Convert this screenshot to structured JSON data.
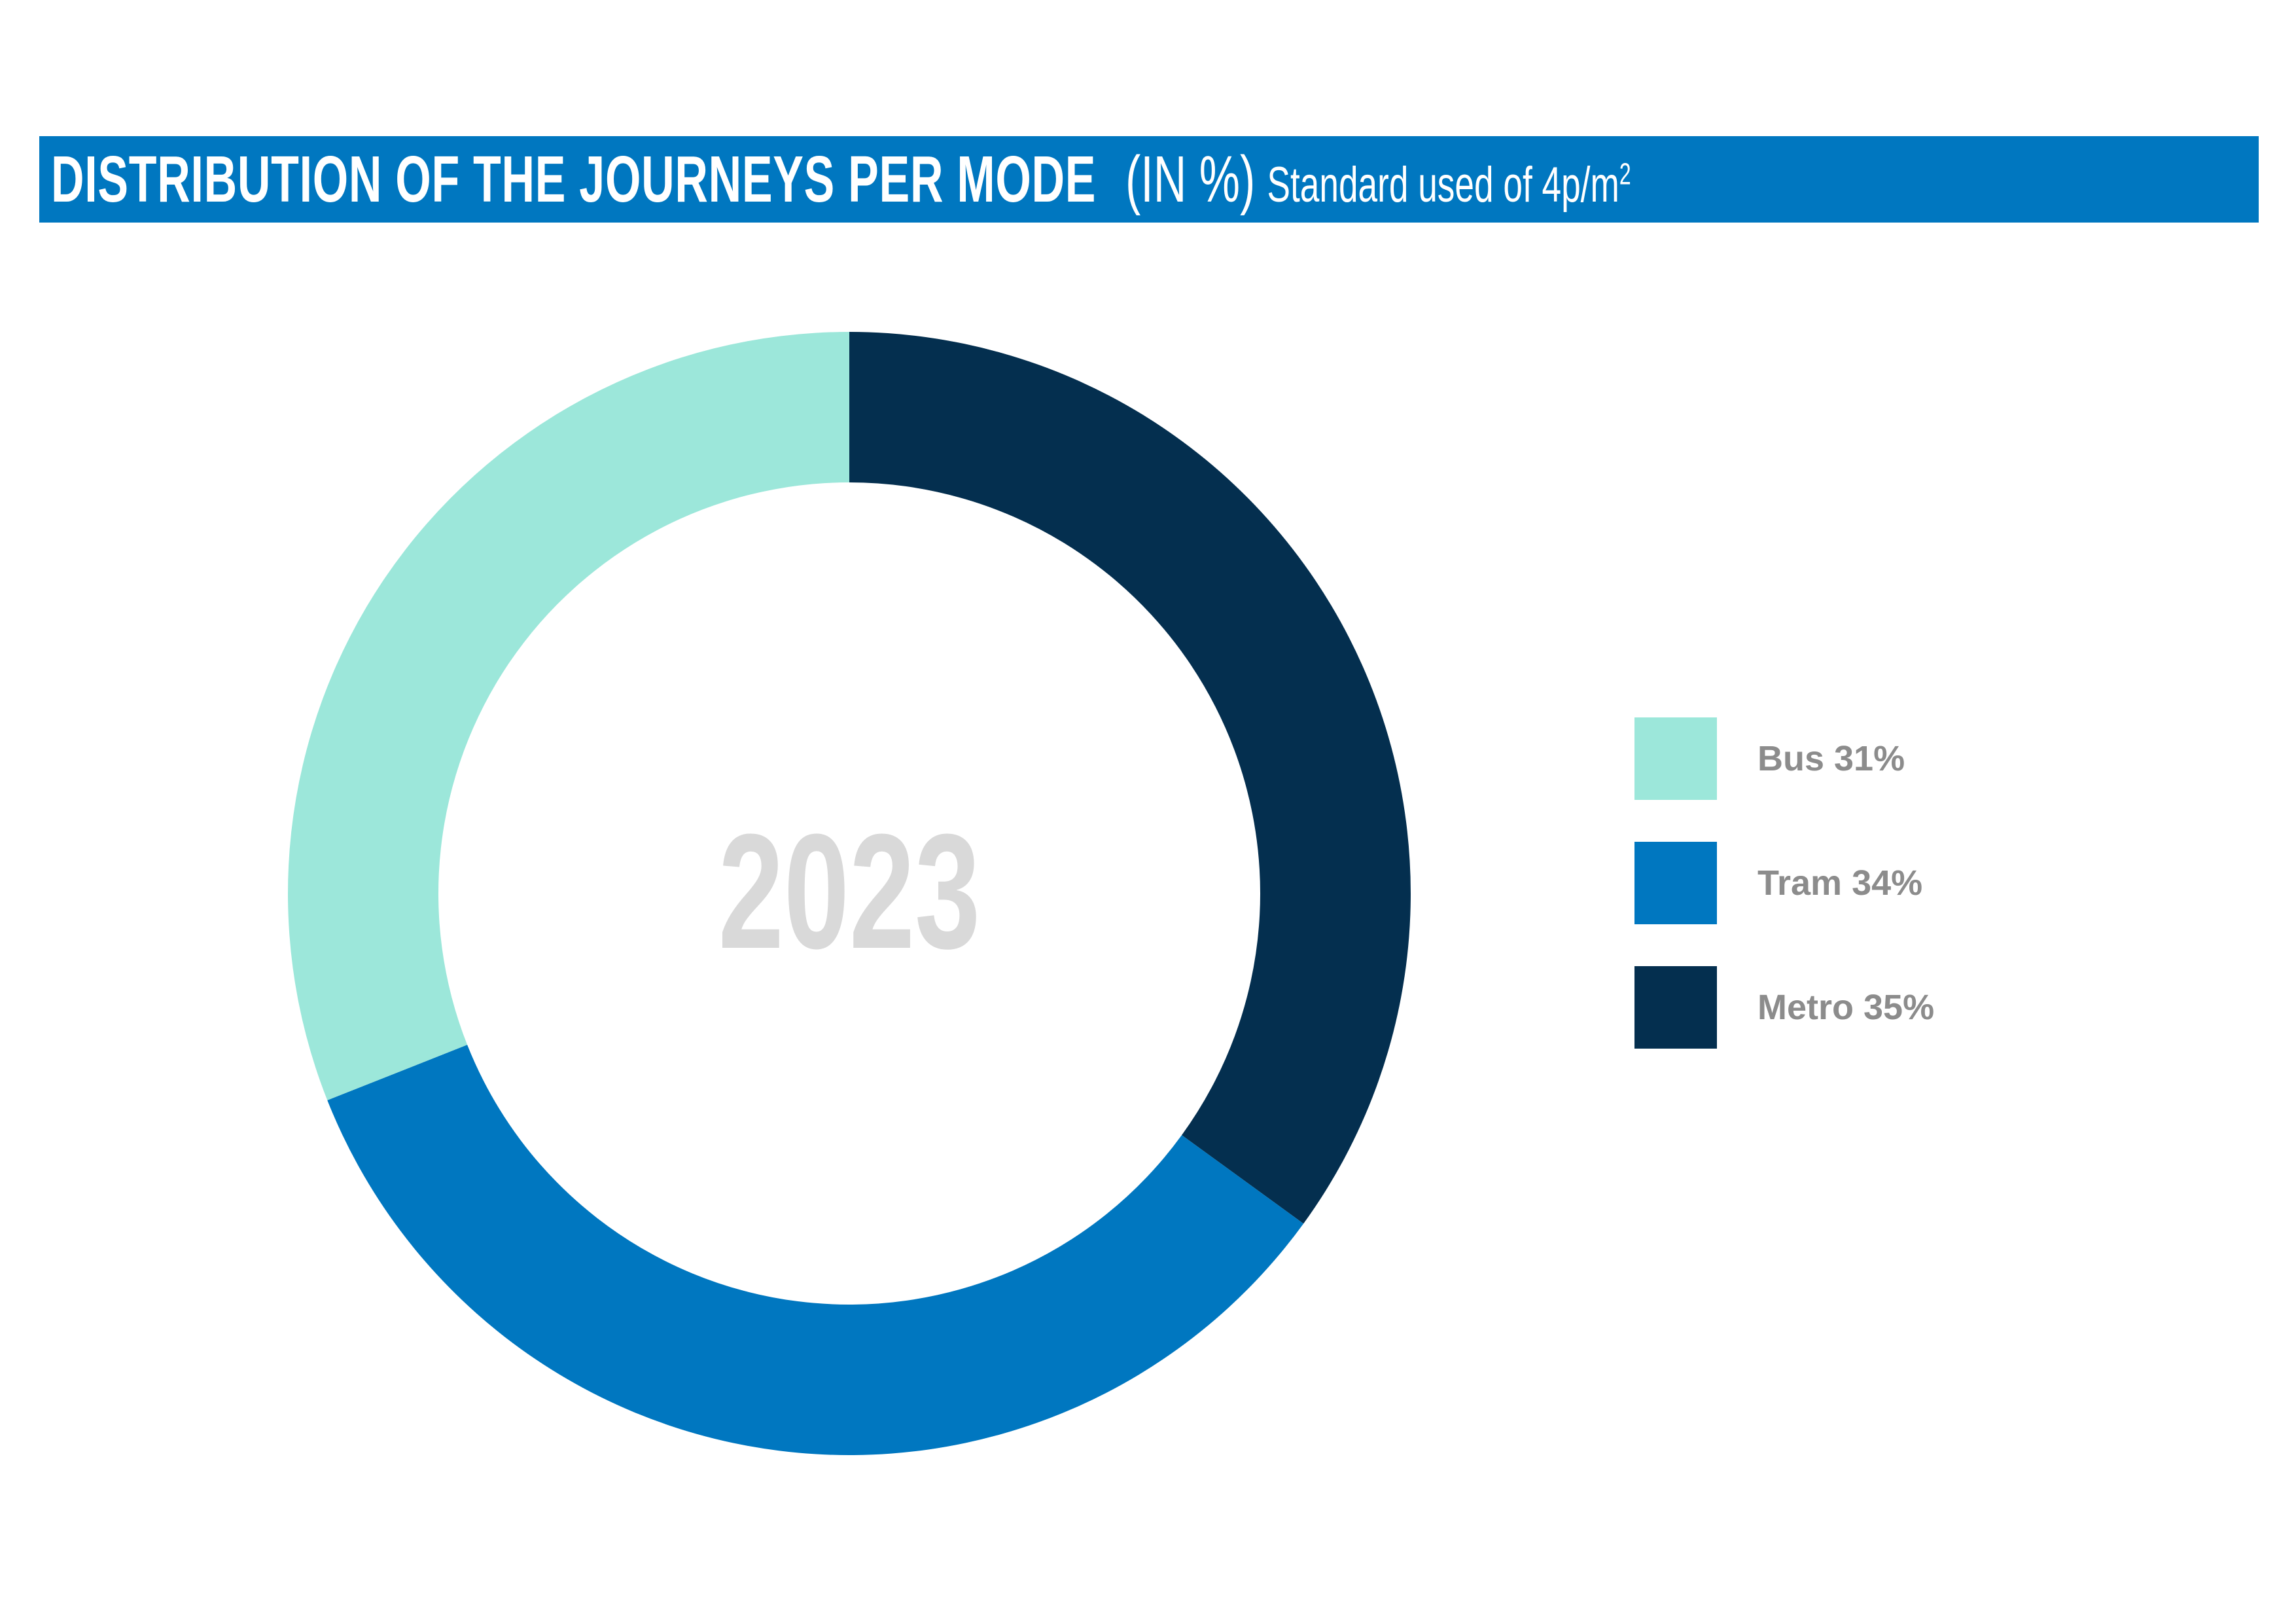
{
  "header": {
    "title": "DISTRIBUTION OF THE JOURNEYS PER MODE",
    "unit": "(IN %)",
    "subtitle": "Standard used of 4p/m",
    "subtitle_superscript": "2"
  },
  "chart_data": {
    "type": "pie",
    "donut": true,
    "center_label": "2023",
    "categories": [
      "Metro",
      "Tram",
      "Bus"
    ],
    "values": [
      35,
      34,
      31
    ],
    "colors": [
      "#042f4f",
      "#0077c0",
      "#9ce7da"
    ],
    "legend_position": "right",
    "legend": [
      {
        "label": "Bus 31%",
        "color": "#9ce7da"
      },
      {
        "label": "Tram 34%",
        "color": "#0077c0"
      },
      {
        "label": "Metro 35%",
        "color": "#042f4f"
      }
    ]
  },
  "colors": {
    "title_bar": "#0077c0",
    "center_label": "#d9d9d9",
    "legend_text": "#8c8c8c"
  }
}
